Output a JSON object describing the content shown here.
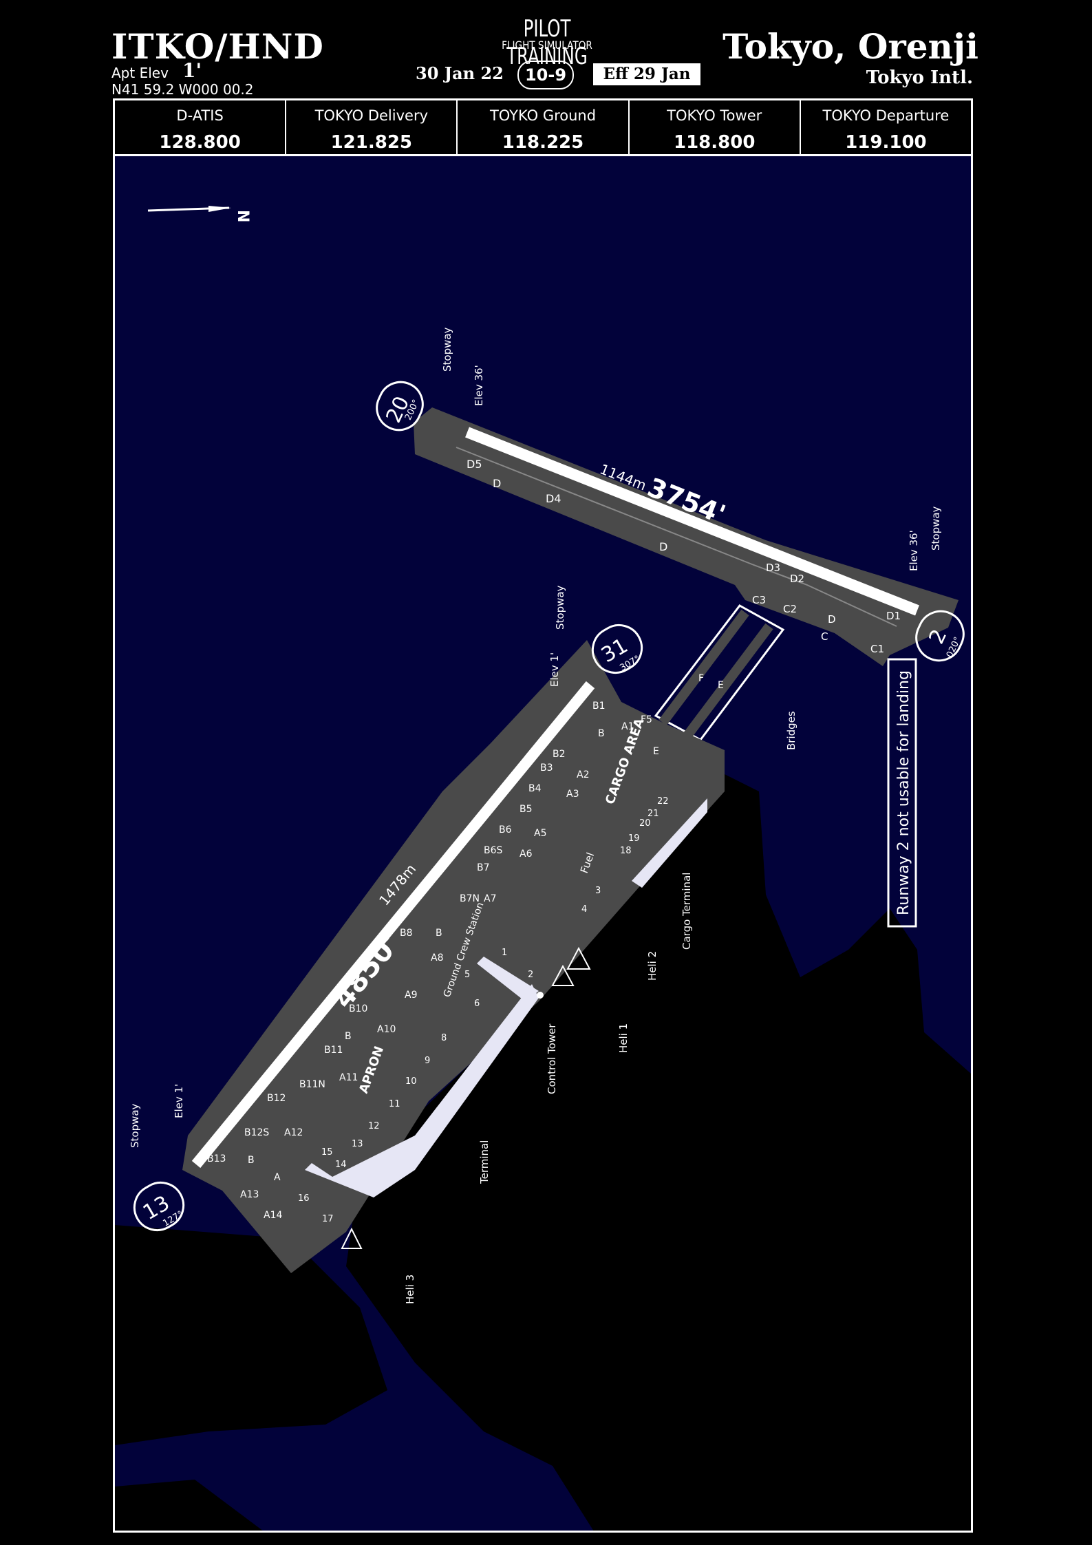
{
  "header": {
    "airport_id": "ITKO/HND",
    "elevation_label": "Apt Elev",
    "elevation_value": "1'",
    "coordinates": "N41 59.2  W000 00.2",
    "brand_line1": "PILOT TRAINING",
    "brand_line2": "FLIGHT SIMULATOR",
    "chart_date": "30 Jan 22",
    "chart_number": "10-9",
    "effective": "Eff 29 Jan",
    "city": "Tokyo, Orenji",
    "airport_name": "Tokyo Intl."
  },
  "frequencies": [
    {
      "name": "D-ATIS",
      "value": "128.800"
    },
    {
      "name": "TOKYO Delivery",
      "value": "121.825"
    },
    {
      "name": "TOYKO Ground",
      "value": "118.225"
    },
    {
      "name": "TOKYO Tower",
      "value": "118.800"
    },
    {
      "name": "TOKYO Departure",
      "value": "119.100"
    }
  ],
  "map": {
    "north_label": "N",
    "colors": {
      "water": "#02023a",
      "land": "#000000",
      "pavement": "#4a4a4a",
      "runway": "#ffffff",
      "terminal": "#e6e6f5"
    },
    "runway_2_20": {
      "length_label": "3754'",
      "metric_label": "1144m",
      "end_a": "20",
      "end_a_hdg": "200°",
      "end_b": "2",
      "end_b_hdg": "020°"
    },
    "runway_13_31": {
      "length_label": "4850'",
      "metric_label": "1478m",
      "end_a": "13",
      "end_a_hdg": "127°",
      "end_b": "31",
      "end_b_hdg": "307°"
    },
    "notice": "Runway 2 not usable for landing",
    "annotations": {
      "stopway": "Stopway",
      "elev_36": "Elev 36'",
      "elev_1": "Elev 1'",
      "bridges": "Bridges",
      "cargo_terminal": "Cargo Terminal",
      "heli_1": "Heli 1",
      "heli_2": "Heli 2",
      "heli_3": "Heli 3",
      "control_tower": "Control Tower",
      "terminal": "Terminal",
      "fuel": "Fuel",
      "ground_crew": "Ground Crew Station",
      "cargo_area": "CARGO AREA",
      "apron": "APRON"
    },
    "taxiways": [
      "D5",
      "D",
      "D4",
      "D",
      "D3",
      "D2",
      "C3",
      "C2",
      "D",
      "C",
      "C1",
      "D1",
      "F",
      "E",
      "B1",
      "B",
      "A1",
      "F5",
      "E",
      "B2",
      "A2",
      "B3",
      "A3",
      "B4",
      "B5",
      "B6",
      "A5",
      "B7",
      "B6S",
      "A6",
      "B7N",
      "A7",
      "B8",
      "A8",
      "B",
      "B10",
      "A9",
      "A10",
      "B11",
      "B",
      "A11",
      "B11N",
      "B12",
      "A12",
      "B12S",
      "B",
      "B13",
      "A13",
      "A",
      "A14"
    ],
    "stands": [
      "1",
      "2",
      "3",
      "4",
      "5",
      "6",
      "8",
      "9",
      "10",
      "11",
      "12",
      "13",
      "14",
      "15",
      "16",
      "17",
      "18",
      "19",
      "20",
      "21",
      "22"
    ]
  }
}
